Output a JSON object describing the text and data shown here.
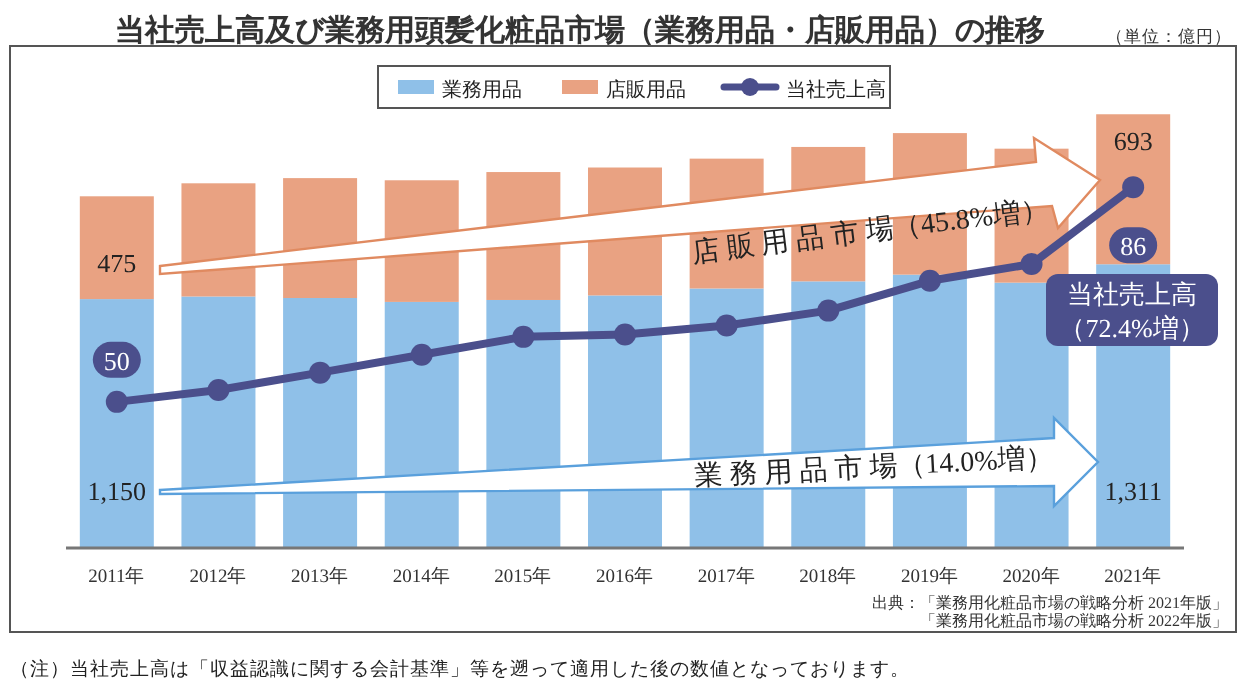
{
  "chart_data": {
    "type": "bar",
    "title": "当社売上高及び業務用頭髪化粧品市場（業務用品・店販用品）の推移",
    "categories": [
      "2011年",
      "2012年",
      "2013年",
      "2014年",
      "2015年",
      "2016年",
      "2017年",
      "2018年",
      "2019年",
      "2020年",
      "2021年"
    ],
    "stacked": true,
    "ylim": [
      0,
      2020
    ],
    "y2lim": [
      25.5,
      98.8
    ],
    "legend": "top",
    "marker": "circle",
    "series": [
      {
        "name": "業務用品",
        "color": "#8fc0e8",
        "values": [
          1150,
          1162,
          1155,
          1137,
          1146,
          1167,
          1199,
          1232,
          1263,
          1226,
          1311
        ],
        "value_labels": [
          "1,150",
          null,
          null,
          null,
          null,
          null,
          null,
          null,
          null,
          null,
          "1,311"
        ]
      },
      {
        "name": "店販用品",
        "color": "#e9a282",
        "values": [
          475,
          523,
          554,
          562,
          591,
          591,
          600,
          621,
          654,
          619,
          693
        ],
        "value_labels": [
          "475",
          null,
          null,
          null,
          null,
          null,
          null,
          null,
          null,
          null,
          "693"
        ]
      },
      {
        "name": "当社売上高",
        "type": "line",
        "axis": "y2",
        "color": "#4b4f8c",
        "values": [
          50,
          52.0,
          54.9,
          57.9,
          60.9,
          61.3,
          62.8,
          65.3,
          70.3,
          73.1,
          86
        ],
        "value_labels": [
          "50",
          null,
          null,
          null,
          null,
          null,
          null,
          null,
          null,
          null,
          "86"
        ]
      }
    ],
    "annotations": [
      "（単位：億円）",
      "店 販 用 品 市 場（45.8%増）",
      "業 務 用 品 市 場（14.0%増）",
      "当社売上高",
      "（72.4%増）",
      "出典：「業務用化粧品市場の戦略分析 2021年版」",
      "「業務用化粧品市場の戦略分析 2022年版」",
      "（注）当社売上高は「収益認識に関する会計基準」等を遡って適用した後の数値となっております。"
    ]
  }
}
